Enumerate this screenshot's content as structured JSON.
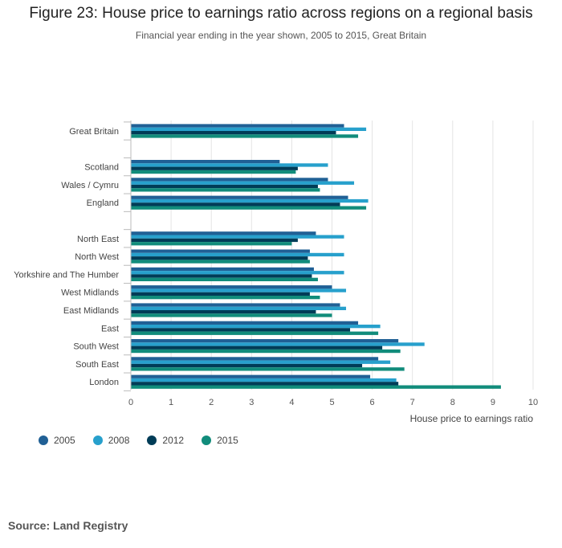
{
  "chart_data": {
    "type": "bar",
    "orientation": "horizontal",
    "title": "Figure 23: House price to earnings ratio across regions on a regional basis",
    "subtitle": "Financial year ending in the year shown, 2005 to 2015, Great Britain",
    "xlabel": "House price to earnings ratio",
    "xlim": [
      0,
      10
    ],
    "xticks": [
      "0",
      "1",
      "2",
      "3",
      "4",
      "5",
      "6",
      "7",
      "8",
      "9",
      "10"
    ],
    "grid": true,
    "legend_position": "bottom-left",
    "categories": [
      "Great Britain",
      "",
      "Scotland",
      "Wales / Cymru",
      "England",
      "",
      "North East",
      "North West",
      "Yorkshire and The Humber",
      "West Midlands",
      "East Midlands",
      "East",
      "South West",
      "South East",
      "London"
    ],
    "series": [
      {
        "name": "2005",
        "color": "#206095",
        "values": [
          5.3,
          null,
          3.7,
          4.9,
          5.4,
          null,
          4.6,
          4.45,
          4.55,
          5.0,
          5.2,
          5.65,
          6.65,
          6.15,
          5.95
        ]
      },
      {
        "name": "2008",
        "color": "#27A0CC",
        "values": [
          5.85,
          null,
          4.9,
          5.55,
          5.9,
          null,
          5.3,
          5.3,
          5.3,
          5.35,
          5.35,
          6.2,
          7.3,
          6.45,
          6.6
        ]
      },
      {
        "name": "2012",
        "color": "#003C57",
        "values": [
          5.1,
          null,
          4.15,
          4.65,
          5.2,
          null,
          4.15,
          4.4,
          4.5,
          4.45,
          4.6,
          5.45,
          6.25,
          5.75,
          6.65
        ]
      },
      {
        "name": "2015",
        "color": "#118C7B",
        "values": [
          5.65,
          null,
          4.1,
          4.7,
          5.85,
          null,
          4.0,
          4.45,
          4.65,
          4.7,
          5.0,
          6.15,
          6.7,
          6.8,
          9.2
        ]
      }
    ]
  },
  "source_label": "Source: Land Registry"
}
